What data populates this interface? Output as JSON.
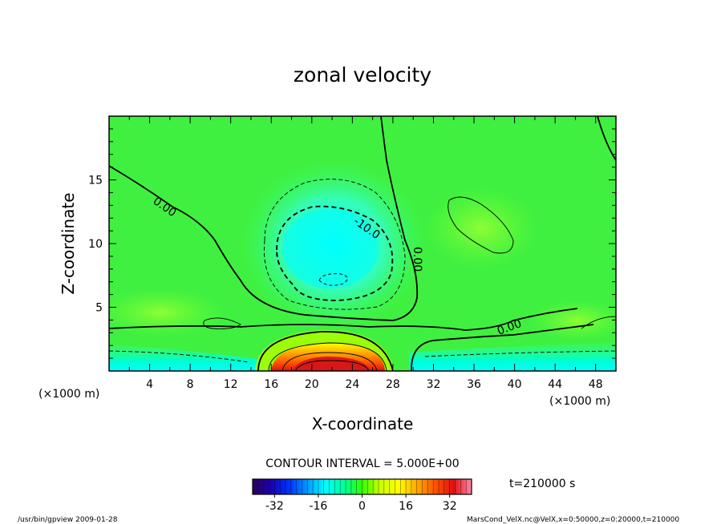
{
  "chart_data": {
    "type": "heatmap",
    "title": "zonal velocity",
    "xlabel": "X-coordinate",
    "ylabel": "Z-coordinate",
    "x_unit_note": "(×1000 m)",
    "x_unit_note_right": "(×1000 m)",
    "xlim": [
      0,
      50
    ],
    "ylim": [
      0,
      20
    ],
    "x_ticks": [
      4,
      8,
      12,
      16,
      20,
      24,
      28,
      32,
      36,
      40,
      44,
      48
    ],
    "y_ticks": [
      5,
      10,
      15
    ],
    "contour_interval_text": "CONTOUR INTERVAL = 5.000E+00",
    "contour_labels": [
      "0.00",
      "-10.0",
      "0.00",
      "0.00"
    ],
    "colorbar": {
      "range": [
        -40,
        40
      ],
      "ticks": [
        -32,
        -16,
        0,
        16,
        32
      ],
      "colors": [
        "#2a0055",
        "#1a00b0",
        "#0033ff",
        "#0099ff",
        "#00ffff",
        "#00ff99",
        "#33ff00",
        "#ccff00",
        "#ffff00",
        "#ffaa00",
        "#ff5500",
        "#e01010",
        "#ff88aa"
      ]
    },
    "time_label": "t=210000 s",
    "footer_left": "/usr/bin/gpview   2009-01-28",
    "footer_right": "MarsCond_VelX.nc@VelX,x=0:50000,z=0:20000,t=210000",
    "features": [
      {
        "name": "upper-negative-core",
        "x": 22.5,
        "z": 10.5,
        "value": -13
      },
      {
        "name": "inner-negative-core",
        "x": 22.5,
        "z": 7.2,
        "value": -15
      },
      {
        "name": "surface-positive-jet",
        "x": 22,
        "z": 0.6,
        "value": 30
      },
      {
        "name": "surface-negative-left",
        "x": 4,
        "z": 0.5,
        "value": -10
      },
      {
        "name": "surface-negative-right",
        "x": 40,
        "z": 0.8,
        "value": -8
      },
      {
        "name": "positive-lobe-right",
        "x": 39,
        "z": 11,
        "value": 4
      }
    ]
  }
}
